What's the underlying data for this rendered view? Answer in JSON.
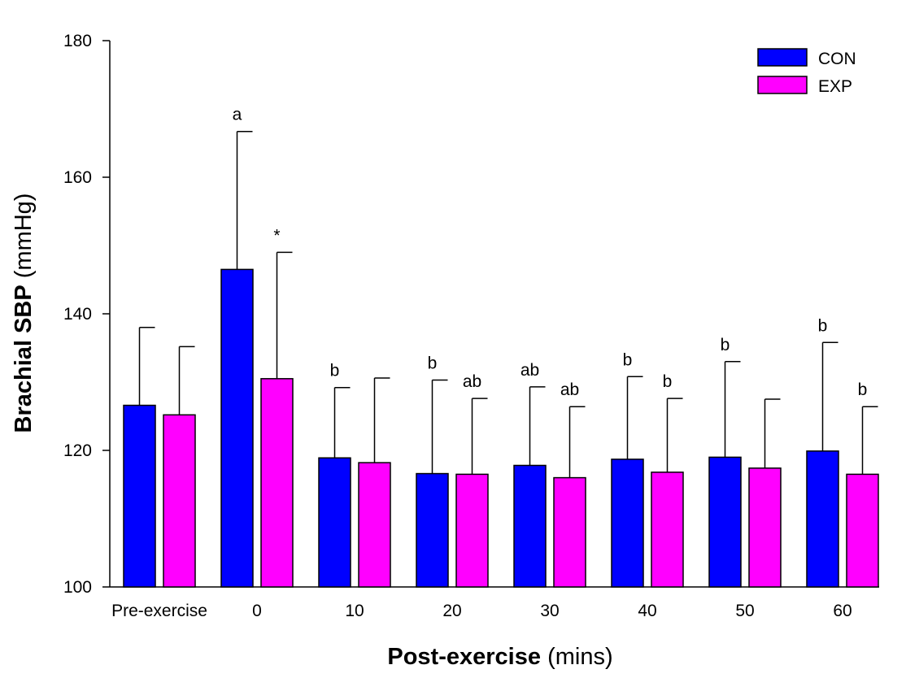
{
  "chart_data": {
    "type": "bar",
    "title": "",
    "xlabel": {
      "bold": "Post-exercise",
      "normal": "(mins)"
    },
    "ylabel": {
      "bold": "Brachial SBP",
      "normal": "(mmHg)"
    },
    "ylim": [
      100,
      180
    ],
    "yticks": [
      100,
      120,
      140,
      160,
      180
    ],
    "categories": [
      "Pre-exercise",
      "0",
      "10",
      "20",
      "30",
      "40",
      "50",
      "60"
    ],
    "series": [
      {
        "name": "CON",
        "color": "#0000FF",
        "values": [
          126.6,
          146.5,
          118.9,
          116.6,
          117.8,
          118.7,
          119.0,
          119.9
        ],
        "error": [
          11.4,
          20.2,
          10.3,
          13.7,
          11.5,
          12.1,
          14.0,
          15.9
        ],
        "annotations": [
          "",
          "a",
          "b",
          "b",
          "ab",
          "b",
          "b",
          "b"
        ]
      },
      {
        "name": "EXP",
        "color": "#FF00FF",
        "values": [
          125.2,
          130.5,
          118.2,
          116.5,
          116.0,
          116.8,
          117.4,
          116.5
        ],
        "error": [
          10.0,
          18.5,
          12.4,
          11.1,
          10.4,
          10.8,
          10.1,
          9.9
        ],
        "annotations": [
          "",
          "*",
          "",
          "ab",
          "ab",
          "b",
          "",
          "b"
        ]
      }
    ],
    "legend": {
      "position": "top-right",
      "entries": [
        "CON",
        "EXP"
      ]
    }
  }
}
